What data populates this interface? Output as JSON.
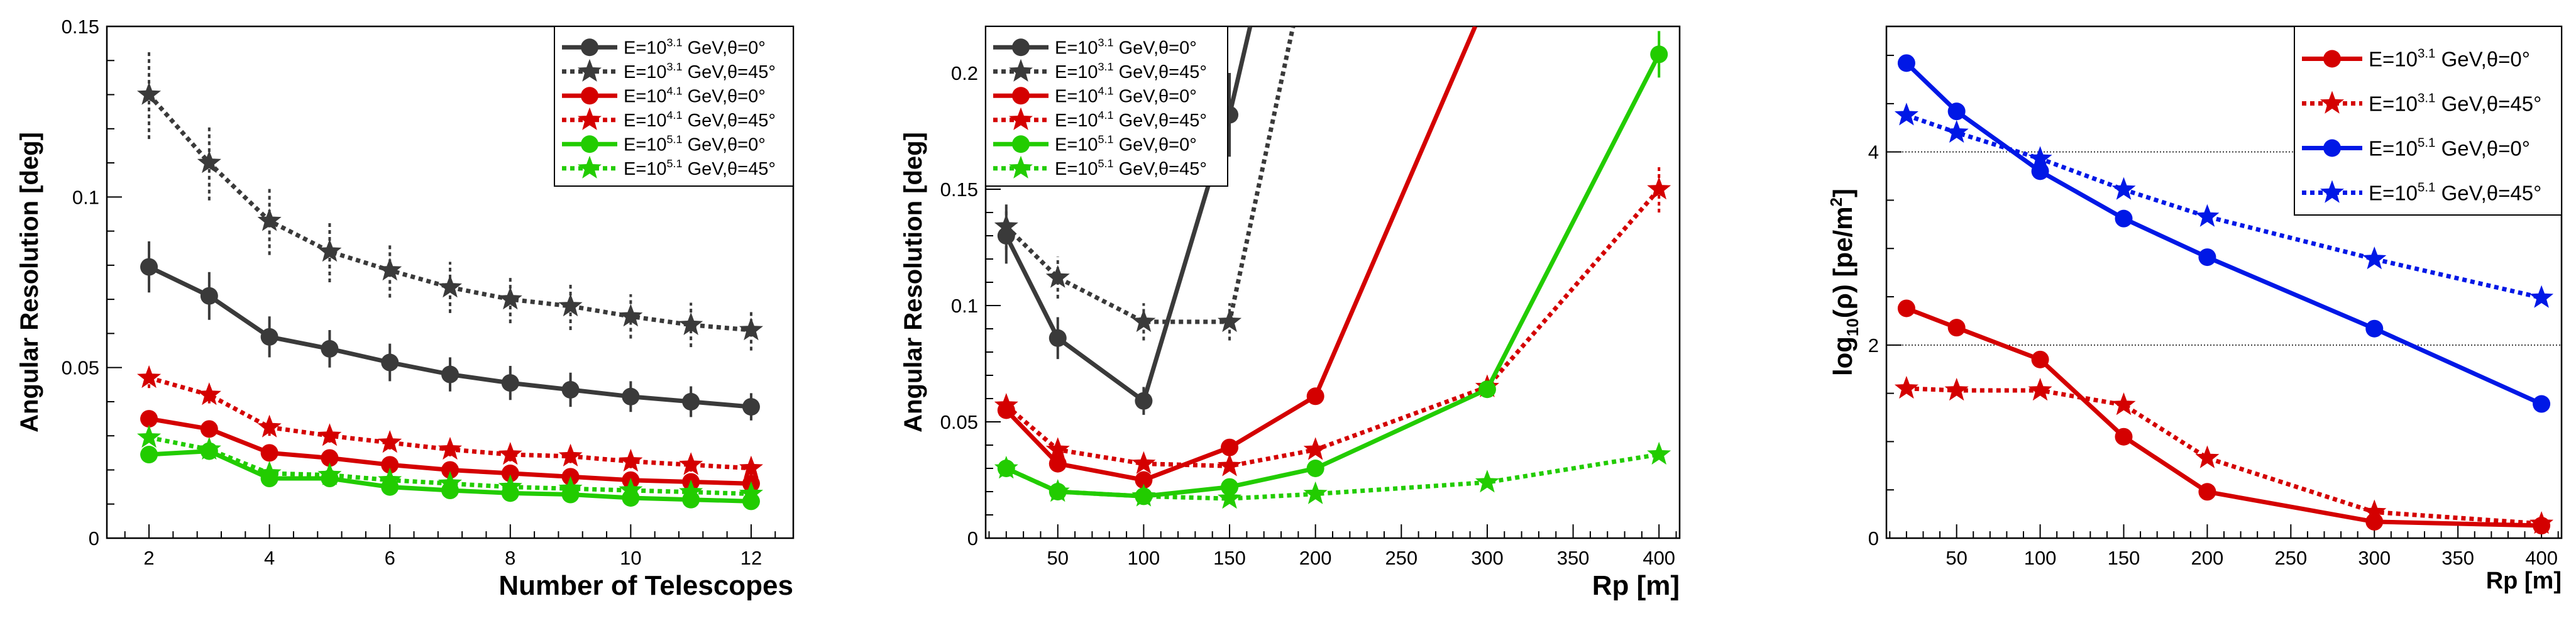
{
  "colors": {
    "black": "#333333",
    "dark": "#3a3a3a",
    "red": "#d40000",
    "green": "#22cc00",
    "blue": "#0018e6",
    "axis": "#000000"
  },
  "chart_data": [
    {
      "id": "panel-a",
      "type": "line",
      "xlabel": "Number of Telescopes",
      "ylabel": "Angular Resolution [deg]",
      "xlim": [
        1.3,
        12.7
      ],
      "ylim": [
        0,
        0.15
      ],
      "xticks": [
        2,
        4,
        6,
        8,
        10,
        12
      ],
      "xtick_labels": [
        "2",
        "4",
        "6",
        "8",
        "10",
        "12"
      ],
      "yticks": [
        0,
        0.05,
        0.1,
        0.15
      ],
      "ytick_labels": [
        "0",
        "0.05",
        "0.1",
        "0.15"
      ],
      "legend": {
        "position": "top-right"
      },
      "series": [
        {
          "name": "E=10^3.1 GeV,θ=0°",
          "label_pre": "E=10",
          "label_exp": "3.1",
          "label_post": " GeV,θ=0°",
          "color": "black",
          "marker": "circle",
          "dashed": false,
          "x": [
            2,
            3,
            4,
            5,
            6,
            7,
            8,
            9,
            10,
            11,
            12
          ],
          "y": [
            0.0795,
            0.071,
            0.059,
            0.0555,
            0.0515,
            0.048,
            0.0455,
            0.0435,
            0.0415,
            0.04,
            0.0385
          ],
          "err": [
            0.0075,
            0.007,
            0.006,
            0.0055,
            0.0055,
            0.005,
            0.005,
            0.005,
            0.0045,
            0.0045,
            0.004
          ]
        },
        {
          "name": "E=10^3.1 GeV,θ=45°",
          "label_pre": "E=10",
          "label_exp": "3.1",
          "label_post": " GeV,θ=45°",
          "color": "black",
          "marker": "star",
          "dashed": true,
          "x": [
            2,
            3,
            4,
            5,
            6,
            7,
            8,
            9,
            10,
            11,
            12
          ],
          "y": [
            0.13,
            0.11,
            0.093,
            0.084,
            0.0785,
            0.0735,
            0.07,
            0.068,
            0.065,
            0.0625,
            0.061
          ],
          "err": [
            0.013,
            0.011,
            0.01,
            0.009,
            0.008,
            0.0075,
            0.007,
            0.007,
            0.0065,
            0.0065,
            0.006
          ]
        },
        {
          "name": "E=10^4.1 GeV,θ=0°",
          "label_pre": "E=10",
          "label_exp": "4.1",
          "label_post": " GeV,θ=0°",
          "color": "red",
          "marker": "circle",
          "dashed": false,
          "x": [
            2,
            3,
            4,
            5,
            6,
            7,
            8,
            9,
            10,
            11,
            12
          ],
          "y": [
            0.035,
            0.032,
            0.025,
            0.0235,
            0.0215,
            0.02,
            0.019,
            0.018,
            0.017,
            0.0165,
            0.016
          ],
          "err": [
            0.002,
            0.002,
            0.002,
            0.002,
            0.002,
            0.0015,
            0.0015,
            0.0015,
            0.0015,
            0.0015,
            0.0015
          ]
        },
        {
          "name": "E=10^4.1 GeV,θ=45°",
          "label_pre": "E=10",
          "label_exp": "4.1",
          "label_post": " GeV,θ=45°",
          "color": "red",
          "marker": "star",
          "dashed": true,
          "x": [
            2,
            3,
            4,
            5,
            6,
            7,
            8,
            9,
            10,
            11,
            12
          ],
          "y": [
            0.047,
            0.042,
            0.0325,
            0.03,
            0.028,
            0.026,
            0.0245,
            0.024,
            0.0225,
            0.0215,
            0.0205
          ],
          "err": [
            0.003,
            0.0025,
            0.0025,
            0.002,
            0.002,
            0.002,
            0.002,
            0.002,
            0.002,
            0.002,
            0.002
          ]
        },
        {
          "name": "E=10^5.1 GeV,θ=0°",
          "label_pre": "E=10",
          "label_exp": "5.1",
          "label_post": " GeV,θ=0°",
          "color": "green",
          "marker": "circle",
          "dashed": false,
          "x": [
            2,
            3,
            4,
            5,
            6,
            7,
            8,
            9,
            10,
            11,
            12
          ],
          "y": [
            0.0245,
            0.0255,
            0.0175,
            0.0175,
            0.015,
            0.014,
            0.0132,
            0.0128,
            0.0118,
            0.0113,
            0.0108
          ],
          "err": [
            0.0015,
            0.0015,
            0.0012,
            0.0012,
            0.0012,
            0.0012,
            0.001,
            0.001,
            0.001,
            0.001,
            0.001
          ]
        },
        {
          "name": "E=10^5.1 GeV,θ=45°",
          "label_pre": "E=10",
          "label_exp": "5.1",
          "label_post": " GeV,θ=45°",
          "color": "green",
          "marker": "star",
          "dashed": true,
          "x": [
            2,
            3,
            4,
            5,
            6,
            7,
            8,
            9,
            10,
            11,
            12
          ],
          "y": [
            0.0295,
            0.026,
            0.019,
            0.0185,
            0.017,
            0.016,
            0.015,
            0.0145,
            0.014,
            0.0135,
            0.013
          ],
          "err": [
            0.0015,
            0.0015,
            0.0012,
            0.0012,
            0.0012,
            0.0012,
            0.001,
            0.001,
            0.001,
            0.001,
            0.001
          ]
        }
      ]
    },
    {
      "id": "panel-b",
      "type": "line",
      "xlabel": "Rp [m]",
      "ylabel": "Angular Resolution [deg]",
      "xlim": [
        8,
        412
      ],
      "ylim": [
        0,
        0.22
      ],
      "xticks": [
        50,
        100,
        150,
        200,
        250,
        300,
        350,
        400
      ],
      "xtick_labels": [
        "50",
        "100",
        "150",
        "200",
        "250",
        "300",
        "350",
        "400"
      ],
      "yticks": [
        0,
        0.05,
        0.1,
        0.15,
        0.2
      ],
      "ytick_labels": [
        "0",
        "0.05",
        "0.1",
        "0.15",
        "0.2"
      ],
      "legend": {
        "position": "top-left"
      },
      "series": [
        {
          "name": "E=10^3.1 GeV,θ=0°",
          "label_pre": "E=10",
          "label_exp": "3.1",
          "label_post": " GeV,θ=0°",
          "color": "black",
          "marker": "circle",
          "dashed": false,
          "x": [
            20,
            50,
            100,
            150,
            162
          ],
          "y": [
            0.13,
            0.086,
            0.059,
            0.182,
            0.22
          ],
          "err": [
            0.012,
            0.009,
            0.006,
            0.018,
            0
          ],
          "markers": [
            true,
            true,
            true,
            true,
            false
          ]
        },
        {
          "name": "E=10^3.1 GeV,θ=45°",
          "label_pre": "E=10",
          "label_exp": "3.1",
          "label_post": " GeV,θ=45°",
          "color": "black",
          "marker": "star",
          "dashed": true,
          "x": [
            20,
            50,
            100,
            150,
            187
          ],
          "y": [
            0.134,
            0.112,
            0.093,
            0.093,
            0.22
          ],
          "err": [
            0.01,
            0.009,
            0.008,
            0.008,
            0
          ],
          "markers": [
            true,
            true,
            true,
            true,
            false
          ]
        },
        {
          "name": "E=10^4.1 GeV,θ=0°",
          "label_pre": "E=10",
          "label_exp": "4.1",
          "label_post": " GeV,θ=0°",
          "color": "red",
          "marker": "circle",
          "dashed": false,
          "x": [
            20,
            50,
            100,
            150,
            200,
            293
          ],
          "y": [
            0.055,
            0.032,
            0.025,
            0.039,
            0.061,
            0.22
          ],
          "err": [
            0.003,
            0.002,
            0.002,
            0.002,
            0.003,
            0
          ],
          "markers": [
            true,
            true,
            true,
            true,
            true,
            false
          ]
        },
        {
          "name": "E=10^4.1 GeV,θ=45°",
          "label_pre": "E=10",
          "label_exp": "4.1",
          "label_post": " GeV,θ=45°",
          "color": "red",
          "marker": "star",
          "dashed": true,
          "x": [
            20,
            50,
            100,
            150,
            200,
            300,
            400
          ],
          "y": [
            0.057,
            0.038,
            0.032,
            0.031,
            0.038,
            0.065,
            0.15
          ],
          "err": [
            0.003,
            0.002,
            0.002,
            0.002,
            0.002,
            0.004,
            0.01
          ],
          "markers": [
            true,
            true,
            true,
            true,
            true,
            true,
            true
          ]
        },
        {
          "name": "E=10^5.1 GeV,θ=0°",
          "label_pre": "E=10",
          "label_exp": "5.1",
          "label_post": " GeV,θ=0°",
          "color": "green",
          "marker": "circle",
          "dashed": false,
          "x": [
            20,
            50,
            100,
            150,
            200,
            300,
            400
          ],
          "y": [
            0.03,
            0.02,
            0.018,
            0.022,
            0.03,
            0.064,
            0.208
          ],
          "err": [
            0.002,
            0.0015,
            0.0015,
            0.002,
            0.002,
            0.003,
            0.01
          ],
          "markers": [
            true,
            true,
            true,
            true,
            true,
            true,
            true
          ]
        },
        {
          "name": "E=10^5.1 GeV,θ=45°",
          "label_pre": "E=10",
          "label_exp": "5.1",
          "label_post": " GeV,θ=45°",
          "color": "green",
          "marker": "star",
          "dashed": true,
          "x": [
            20,
            50,
            100,
            150,
            200,
            300,
            400
          ],
          "y": [
            0.03,
            0.02,
            0.018,
            0.017,
            0.019,
            0.024,
            0.036
          ],
          "err": [
            0.0015,
            0.001,
            0.001,
            0.001,
            0.001,
            0.0015,
            0.002
          ],
          "markers": [
            true,
            true,
            true,
            true,
            true,
            true,
            true
          ]
        }
      ]
    },
    {
      "id": "panel-c",
      "type": "line",
      "xlabel": "Rp [m]",
      "ylabel": "log10(ρ) [pe/m²]",
      "ylabel_pre": "log",
      "ylabel_sub": "10",
      "ylabel_post": "(ρ) [pe/m",
      "ylabel_sup": "2",
      "ylabel_end": "]",
      "xlim": [
        8,
        412
      ],
      "ylim": [
        0,
        5.3
      ],
      "xticks": [
        50,
        100,
        150,
        200,
        250,
        300,
        350,
        400
      ],
      "xtick_labels": [
        "50",
        "100",
        "150",
        "200",
        "250",
        "300",
        "350",
        "400"
      ],
      "yticks": [
        0,
        2,
        4
      ],
      "ytick_labels": [
        "0",
        "2",
        "4"
      ],
      "gridlines_y": [
        2,
        4
      ],
      "legend": {
        "position": "top-right"
      },
      "series": [
        {
          "name": "E=10^3.1 GeV,θ=0°",
          "label_pre": "E=10",
          "label_exp": "3.1",
          "label_post": " GeV,θ=0°",
          "color": "red",
          "marker": "circle",
          "dashed": false,
          "x": [
            20,
            50,
            100,
            150,
            200,
            300,
            400
          ],
          "y": [
            2.38,
            2.18,
            1.85,
            1.05,
            0.48,
            0.17,
            0.13
          ]
        },
        {
          "name": "E=10^3.1 GeV,θ=45°",
          "label_pre": "E=10",
          "label_exp": "3.1",
          "label_post": " GeV,θ=45°",
          "color": "red",
          "marker": "star",
          "dashed": true,
          "x": [
            20,
            50,
            100,
            150,
            200,
            300,
            400
          ],
          "y": [
            1.55,
            1.53,
            1.53,
            1.38,
            0.83,
            0.27,
            0.15
          ]
        },
        {
          "name": "E=10^5.1 GeV,θ=0°",
          "label_pre": "E=10",
          "label_exp": "5.1",
          "label_post": " GeV,θ=0°",
          "color": "blue",
          "marker": "circle",
          "dashed": false,
          "x": [
            20,
            50,
            100,
            150,
            200,
            300,
            400
          ],
          "y": [
            4.92,
            4.42,
            3.8,
            3.31,
            2.91,
            2.17,
            1.39
          ]
        },
        {
          "name": "E=10^5.1 GeV,θ=45°",
          "label_pre": "E=10",
          "label_exp": "5.1",
          "label_post": " GeV,θ=45°",
          "color": "blue",
          "marker": "star",
          "dashed": true,
          "x": [
            20,
            50,
            100,
            150,
            200,
            300,
            400
          ],
          "y": [
            4.38,
            4.2,
            3.93,
            3.61,
            3.33,
            2.89,
            2.49
          ]
        }
      ]
    }
  ]
}
